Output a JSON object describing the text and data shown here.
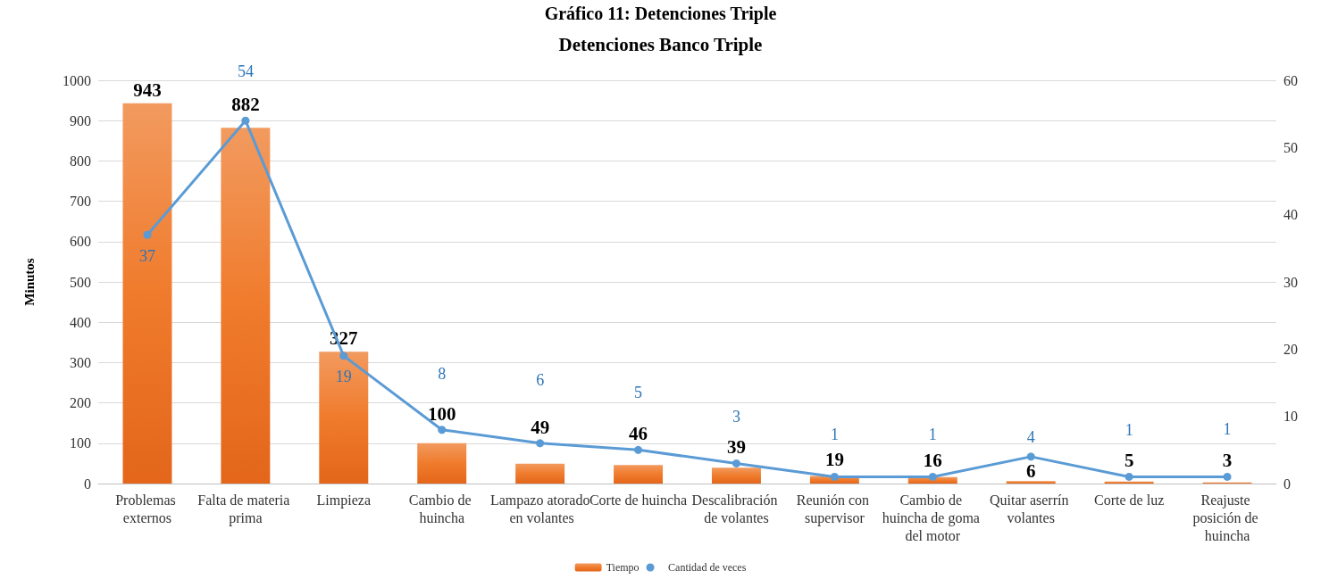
{
  "chart_data": {
    "type": "bar",
    "title": "Gráfico 11: Detenciones Triple",
    "subtitle": "Detenciones Banco Triple",
    "ylabel": "Minutos",
    "categories": [
      "Problemas externos",
      "Falta de materia prima",
      "Limpieza",
      "Cambio de huincha",
      "Lampazo atorado en volantes",
      "Corte de huincha",
      "Descalibración de volantes",
      "Reunión con supervisor",
      "Cambio de huincha de goma del motor",
      "Quitar aserrín volantes",
      "Corte de luz",
      "Reajuste posición de huincha"
    ],
    "series": [
      {
        "name": "Tiempo",
        "type": "bar",
        "color": "#f07b2c",
        "values": [
          943,
          882,
          327,
          100,
          49,
          46,
          39,
          19,
          16,
          6,
          5,
          3
        ]
      },
      {
        "name": "Cantidad de veces",
        "type": "line",
        "axis": "y2",
        "color": "#5b9bd5",
        "values": [
          37,
          54,
          19,
          8,
          6,
          5,
          3,
          1,
          1,
          4,
          1,
          1
        ]
      }
    ],
    "ylim": [
      0,
      1000
    ],
    "yticks": [
      0,
      100,
      200,
      300,
      400,
      500,
      600,
      700,
      800,
      900,
      1000
    ],
    "y2lim": [
      0,
      60
    ],
    "y2ticks": [
      0,
      10,
      20,
      30,
      40,
      50,
      60
    ],
    "grid": "y",
    "legend": "bottom",
    "data_labels": true,
    "marker": "circle",
    "line_style": "solid"
  }
}
